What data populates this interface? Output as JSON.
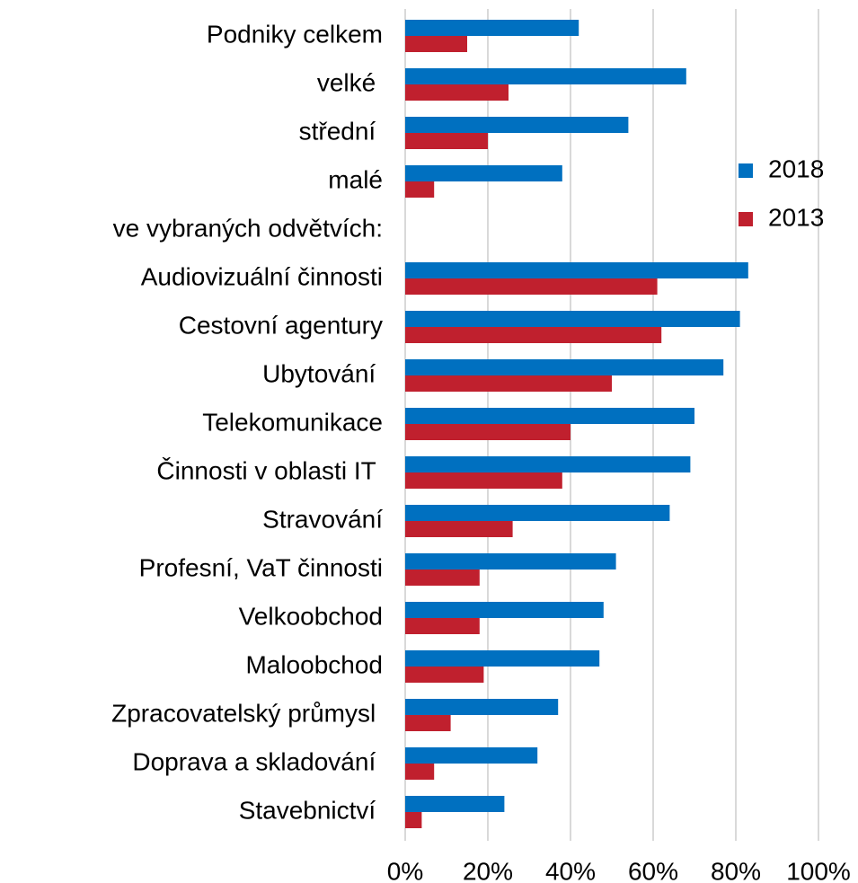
{
  "chart_data": {
    "type": "barh",
    "categories": [
      "Podniky celkem",
      "velké ",
      "střední ",
      "malé",
      "ve vybraných odvětvích:",
      "Audiovizuální činnosti",
      "Cestovní agentury",
      "Ubytování ",
      "Telekomunikace",
      "Činnosti v oblasti IT ",
      "Stravování",
      "Profesní, VaT činnosti",
      "Velkoobchod",
      "Maloobchod",
      "Zpracovatelský průmysl ",
      "Doprava a skladování ",
      "Stavebnictví "
    ],
    "series": [
      {
        "name": "2018",
        "color": "#0070c0",
        "values": [
          42,
          68,
          54,
          38,
          null,
          83,
          81,
          77,
          70,
          69,
          64,
          51,
          48,
          47,
          37,
          32,
          24
        ]
      },
      {
        "name": "2013",
        "color": "#c0202e",
        "values": [
          15,
          25,
          20,
          7,
          null,
          61,
          62,
          50,
          40,
          38,
          26,
          18,
          18,
          19,
          11,
          7,
          4
        ]
      }
    ],
    "xlim": [
      0,
      100
    ],
    "xticks": [
      {
        "value": 0,
        "label": "0%"
      },
      {
        "value": 20,
        "label": "20%"
      },
      {
        "value": 40,
        "label": "40%"
      },
      {
        "value": 60,
        "label": "60%"
      },
      {
        "value": 80,
        "label": "80%"
      },
      {
        "value": 100,
        "label": "100%"
      }
    ],
    "grid": true,
    "legend": "right"
  }
}
